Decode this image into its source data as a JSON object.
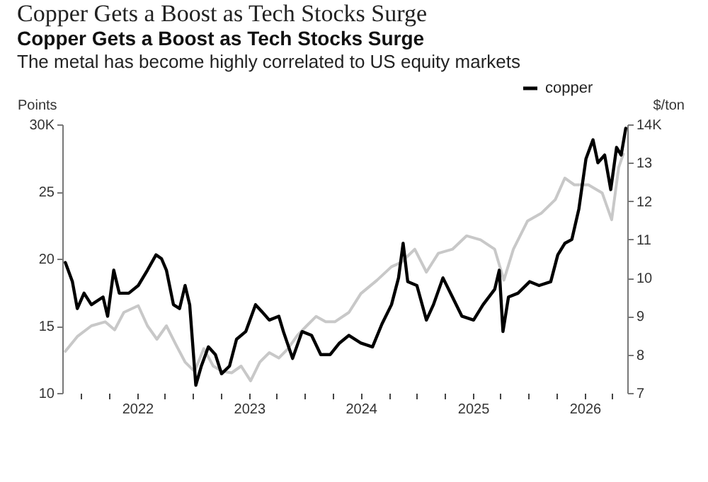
{
  "chart_data": {
    "type": "line",
    "title": "Copper Gets a Boost as Tech Stocks Surge",
    "subtitle": "Copper Gets a Boost as Tech Stocks Surge",
    "annotations": [
      "The metal has become highly correlated to US equity markets"
    ],
    "ylabel": "Points",
    "y2label": "$/ton",
    "legend": "top right",
    "xlim": [
      "2021-05-01",
      "2026-05-20"
    ],
    "xticks": [
      {
        "value": "2021-07-01",
        "label": null
      },
      {
        "value": "2021-10-01",
        "label": null
      },
      {
        "value": "2022-01-01",
        "label": "2022"
      },
      {
        "value": "2022-04-01",
        "label": null
      },
      {
        "value": "2022-07-01",
        "label": null
      },
      {
        "value": "2022-10-01",
        "label": null
      },
      {
        "value": "2023-01-01",
        "label": "2023"
      },
      {
        "value": "2023-04-01",
        "label": null
      },
      {
        "value": "2023-07-01",
        "label": null
      },
      {
        "value": "2023-10-01",
        "label": null
      },
      {
        "value": "2024-01-01",
        "label": "2024"
      },
      {
        "value": "2024-04-01",
        "label": null
      },
      {
        "value": "2024-07-01",
        "label": null
      },
      {
        "value": "2024-10-01",
        "label": null
      },
      {
        "value": "2025-01-01",
        "label": "2025"
      },
      {
        "value": "2025-04-01",
        "label": null
      },
      {
        "value": "2025-07-01",
        "label": null
      },
      {
        "value": "2025-10-01",
        "label": null
      },
      {
        "value": "2026-01-01",
        "label": "2026"
      },
      {
        "value": "2026-04-01",
        "label": null
      }
    ],
    "ylim": [
      10,
      30
    ],
    "yticks": [
      10,
      15,
      20,
      25,
      {
        "value": 30,
        "label": "30K"
      }
    ],
    "y2lim": [
      7,
      14
    ],
    "y2ticks": [
      7,
      8,
      9,
      10,
      11,
      12,
      13,
      {
        "value": 14,
        "label": "14K"
      }
    ],
    "series": [
      {
        "color": "#c8c8c8",
        "x": [
          "2021-05-11",
          "2021-06-19",
          "2021-08-04",
          "2021-09-18",
          "2021-10-19",
          "2021-11-18",
          "2022-01-04",
          "2022-02-03",
          "2022-03-06",
          "2022-04-06",
          "2022-05-07",
          "2022-06-06",
          "2022-07-07",
          "2022-08-06",
          "2022-09-06",
          "2022-10-06",
          "2022-11-05",
          "2022-12-06",
          "2023-01-06",
          "2023-02-05",
          "2023-03-08",
          "2023-04-08",
          "2023-05-08",
          "2023-06-08",
          "2023-07-08",
          "2023-08-08",
          "2023-09-08",
          "2023-10-08",
          "2023-11-23",
          "2024-01-01",
          "2024-02-23",
          "2024-04-10",
          "2024-05-10",
          "2024-06-25",
          "2024-08-02",
          "2024-09-10",
          "2024-10-26",
          "2024-12-11",
          "2025-01-26",
          "2025-03-13",
          "2025-04-12",
          "2025-05-13",
          "2025-06-28",
          "2025-08-13",
          "2025-09-27",
          "2025-10-28",
          "2025-11-28",
          "2026-01-13",
          "2026-02-27",
          "2026-03-30",
          "2026-04-22",
          "2026-05-07"
        ],
        "values": [
          13.1,
          14.2,
          15.0,
          15.3,
          14.7,
          16.0,
          16.5,
          15.0,
          14.0,
          15.0,
          13.6,
          12.3,
          11.6,
          13.3,
          12.0,
          11.6,
          11.5,
          12.0,
          10.9,
          12.3,
          13.0,
          12.6,
          13.3,
          14.3,
          15.0,
          15.7,
          15.3,
          15.3,
          16.0,
          17.4,
          18.4,
          19.4,
          19.7,
          20.7,
          19.0,
          20.4,
          20.7,
          21.7,
          21.4,
          20.7,
          18.4,
          20.7,
          22.8,
          23.4,
          24.4,
          26.0,
          25.5,
          25.5,
          24.9,
          22.9,
          26.8,
          27.8
        ]
      },
      {
        "name": "copper",
        "color": "#000000",
        "axis": "y2",
        "x": [
          "2021-05-11",
          "2021-06-03",
          "2021-06-19",
          "2021-07-11",
          "2021-08-04",
          "2021-09-11",
          "2021-09-26",
          "2021-10-16",
          "2021-11-03",
          "2021-12-04",
          "2022-01-04",
          "2022-02-03",
          "2022-03-03",
          "2022-03-21",
          "2022-04-06",
          "2022-04-29",
          "2022-05-19",
          "2022-06-06",
          "2022-06-21",
          "2022-07-11",
          "2022-07-29",
          "2022-08-21",
          "2022-09-13",
          "2022-10-03",
          "2022-10-29",
          "2022-11-21",
          "2022-12-21",
          "2023-01-22",
          "2023-02-14",
          "2023-03-08",
          "2023-04-08",
          "2023-04-23",
          "2023-05-23",
          "2023-06-23",
          "2023-07-24",
          "2023-08-23",
          "2023-09-23",
          "2023-10-23",
          "2023-11-23",
          "2024-01-01",
          "2024-02-08",
          "2024-03-10",
          "2024-04-10",
          "2024-05-03",
          "2024-05-18",
          "2024-06-02",
          "2024-07-02",
          "2024-08-02",
          "2024-08-25",
          "2024-09-25",
          "2024-10-26",
          "2024-11-26",
          "2025-01-03",
          "2025-02-03",
          "2025-03-13",
          "2025-03-28",
          "2025-04-09",
          "2025-04-27",
          "2025-05-28",
          "2025-07-05",
          "2025-08-05",
          "2025-09-12",
          "2025-10-05",
          "2025-10-28",
          "2025-11-20",
          "2025-12-13",
          "2026-01-05",
          "2026-01-28",
          "2026-02-13",
          "2026-03-07",
          "2026-03-27",
          "2026-04-15",
          "2026-04-30",
          "2026-05-15"
        ],
        "values": [
          10.4,
          9.9,
          9.2,
          9.6,
          9.3,
          9.5,
          9.0,
          10.2,
          9.6,
          9.6,
          9.8,
          10.2,
          10.6,
          10.5,
          10.2,
          9.3,
          9.2,
          9.8,
          9.3,
          7.2,
          7.7,
          8.2,
          8.0,
          7.5,
          7.7,
          8.4,
          8.6,
          9.3,
          9.1,
          8.9,
          9.0,
          8.6,
          7.9,
          8.6,
          8.5,
          8.0,
          8.0,
          8.3,
          8.5,
          8.3,
          8.2,
          8.8,
          9.3,
          10.0,
          10.9,
          9.9,
          9.8,
          8.9,
          9.3,
          10.0,
          9.5,
          9.0,
          8.9,
          9.3,
          9.7,
          10.2,
          8.6,
          9.5,
          9.6,
          9.9,
          9.8,
          9.9,
          10.6,
          10.9,
          11.0,
          11.8,
          13.1,
          13.6,
          13.0,
          13.2,
          12.3,
          13.4,
          13.2,
          13.9
        ]
      }
    ]
  }
}
